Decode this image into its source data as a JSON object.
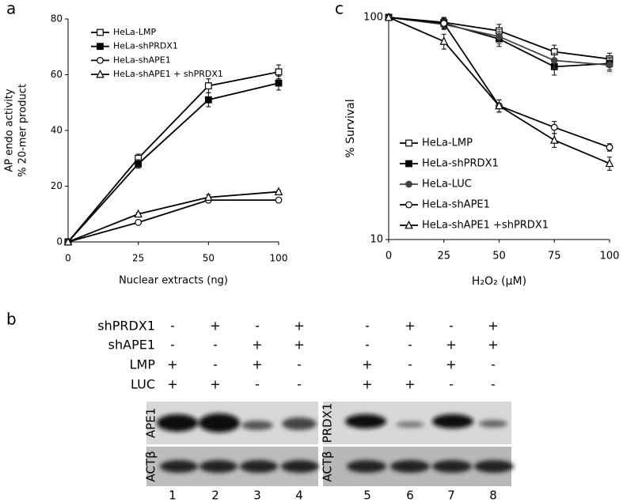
{
  "panel_labels": [
    "a",
    "b",
    "c"
  ],
  "chart_data": [
    {
      "type": "line",
      "ylabel": [
        "AP endo activity",
        "% 20-mer product"
      ],
      "xlabel": "Nuclear extracts (ng)",
      "categories": [
        "0",
        "25",
        "50",
        "100"
      ],
      "ylim": [
        0,
        80
      ],
      "yticks": [
        0,
        20,
        40,
        60,
        80
      ],
      "legend": "upper-left",
      "series": [
        {
          "name": "HeLa-LMP",
          "color": "#000000",
          "marker": "square-open",
          "values": [
            0,
            30,
            56,
            61
          ],
          "errors": [
            0,
            1.5,
            2.5,
            2.5
          ]
        },
        {
          "name": "HeLa-shPRDX1",
          "color": "#000000",
          "marker": "square-filled",
          "values": [
            0,
            28,
            51,
            57
          ],
          "errors": [
            0,
            1.5,
            2.5,
            2.5
          ]
        },
        {
          "name": "HeLa-shAPE1",
          "color": "#000000",
          "marker": "circle-open",
          "values": [
            0,
            7,
            15,
            15
          ],
          "errors": [
            0,
            0.5,
            0.8,
            0.5
          ]
        },
        {
          "name": "HeLa-shAPE1 + shPRDX1",
          "color": "#000000",
          "marker": "triangle-open",
          "values": [
            0,
            10,
            16,
            18
          ],
          "errors": [
            0,
            0.5,
            1,
            0.5
          ]
        }
      ]
    },
    {
      "type": "line",
      "ylabel": [
        "% Survival"
      ],
      "xlabel": "H₂O₂ (μM)",
      "x": [
        0,
        25,
        50,
        75,
        100
      ],
      "xlim": [
        0,
        100
      ],
      "xticks": [
        0,
        25,
        50,
        75,
        100
      ],
      "ylim": [
        10,
        100
      ],
      "yticks": [
        10,
        100
      ],
      "log_y": true,
      "legend": "lower-left",
      "series": [
        {
          "name": "HeLa-LMP",
          "color": "#000000",
          "marker": "square-open",
          "values": [
            100,
            95,
            87,
            70,
            65
          ],
          "errors": [
            3,
            5,
            6,
            5,
            4
          ]
        },
        {
          "name": "HeLa-shPRDX1",
          "color": "#000000",
          "marker": "square-filled",
          "values": [
            100,
            94,
            80,
            60,
            62
          ],
          "errors": [
            3,
            5,
            6,
            5,
            4
          ]
        },
        {
          "name": "HeLa-LUC",
          "color": "#444444",
          "marker": "circle-filled",
          "values": [
            100,
            93,
            82,
            64,
            61
          ],
          "errors": [
            3,
            5,
            6,
            5,
            4
          ]
        },
        {
          "name": "HeLa-shAPE1",
          "color": "#000000",
          "marker": "circle-open",
          "values": [
            100,
            94,
            40,
            32,
            26
          ],
          "errors": [
            3,
            5,
            2.5,
            2,
            1
          ]
        },
        {
          "name": "HeLa-shAPE1 +shPRDX1",
          "color": "#000000",
          "marker": "triangle-open",
          "values": [
            100,
            78,
            40,
            28,
            22
          ],
          "errors": [
            3,
            6,
            2.5,
            2,
            1.5
          ]
        }
      ]
    }
  ],
  "blot": {
    "rows": [
      {
        "label": "shPRDX1",
        "signs": [
          "-",
          "+",
          "-",
          "+",
          "-",
          "+",
          "-",
          "+"
        ]
      },
      {
        "label": "shAPE1",
        "signs": [
          "-",
          "-",
          "+",
          "+",
          "-",
          "-",
          "+",
          "+"
        ]
      },
      {
        "label": "LMP",
        "signs": [
          "+",
          "-",
          "+",
          "-",
          "+",
          "-",
          "+",
          "-"
        ]
      },
      {
        "label": "LUC",
        "signs": [
          "+",
          "+",
          "-",
          "-",
          "+",
          "+",
          "-",
          "-"
        ]
      }
    ],
    "lanes": [
      "1",
      "2",
      "3",
      "4",
      "5",
      "6",
      "7",
      "8"
    ],
    "left_bands": [
      "APE1",
      "ACTβ"
    ],
    "right_bands": [
      "PRDX1",
      "ACTβ"
    ]
  }
}
